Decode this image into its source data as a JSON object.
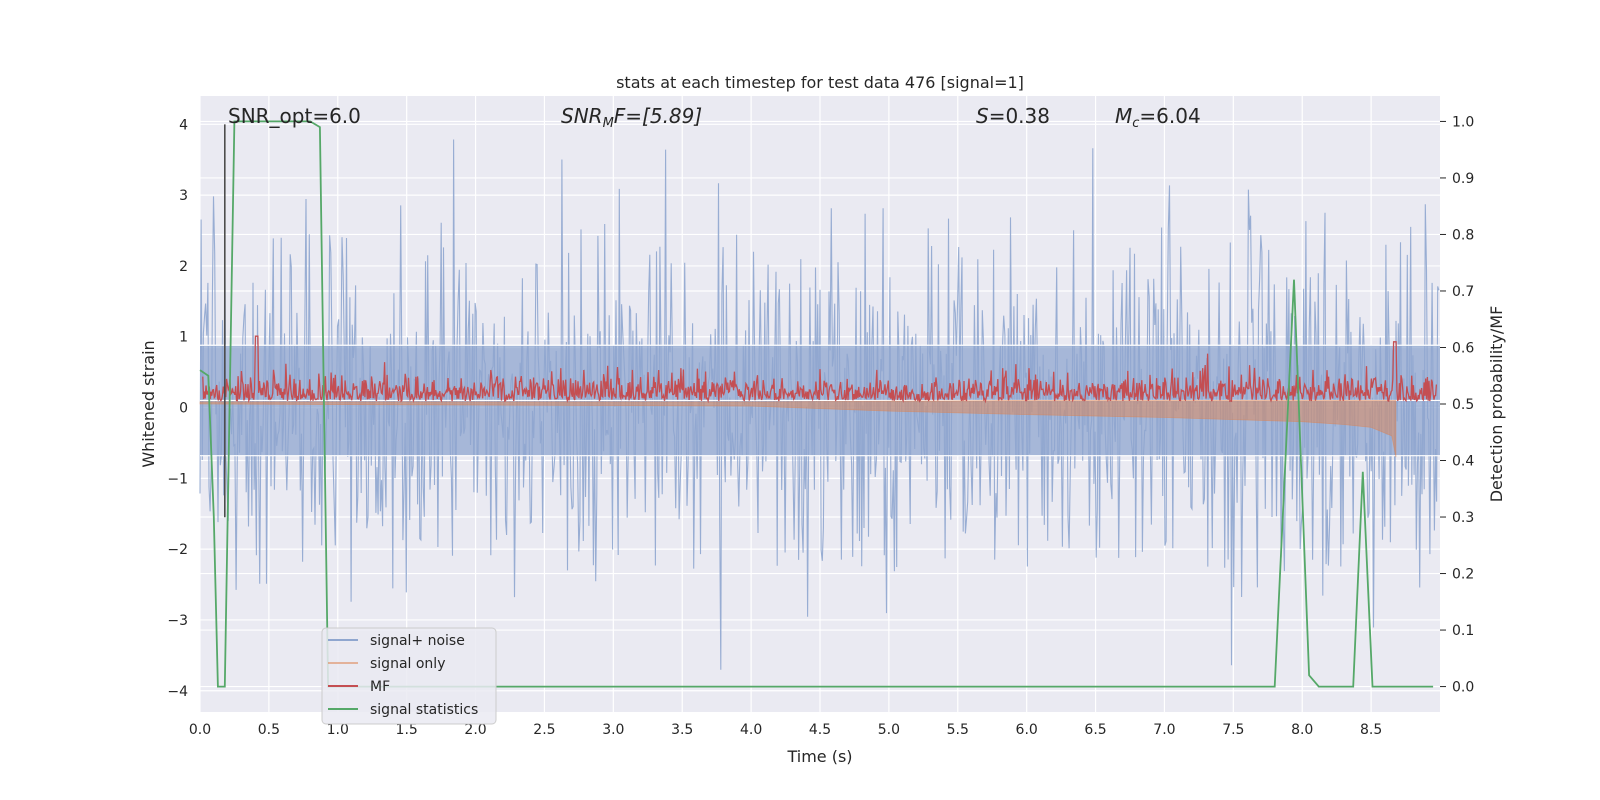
{
  "chart_data": {
    "type": "line",
    "title": "stats at each timestep for test data 476 [signal=1]",
    "xlabel": "Time (s)",
    "ylabel": "Whitened strain",
    "ylabel_right": "Detection probability/MF",
    "xlim": [
      0.0,
      9.0
    ],
    "ylim": [
      -4.3,
      4.4
    ],
    "ylim_right": [
      -0.045,
      1.045
    ],
    "x_ticks": [
      0.0,
      0.5,
      1.0,
      1.5,
      2.0,
      2.5,
      3.0,
      3.5,
      4.0,
      4.5,
      5.0,
      5.5,
      6.0,
      6.5,
      7.0,
      7.5,
      8.0,
      8.5
    ],
    "x_tick_labels": [
      "0.0",
      "0.5",
      "1.0",
      "1.5",
      "2.0",
      "2.5",
      "3.0",
      "3.5",
      "4.0",
      "4.5",
      "5.0",
      "5.5",
      "6.0",
      "6.5",
      "7.0",
      "7.5",
      "8.0",
      "8.5"
    ],
    "y_ticks": [
      -4,
      -3,
      -2,
      -1,
      0,
      1,
      2,
      3,
      4
    ],
    "y_tick_labels": [
      "−4",
      "−3",
      "−2",
      "−1",
      "0",
      "1",
      "2",
      "3",
      "4"
    ],
    "y_right_ticks": [
      0.0,
      0.1,
      0.2,
      0.3,
      0.4,
      0.5,
      0.6,
      0.7,
      0.8,
      0.9,
      1.0
    ],
    "y_right_tick_labels": [
      "0.0",
      "0.1",
      "0.2",
      "0.3",
      "0.4",
      "0.5",
      "0.6",
      "0.7",
      "0.8",
      "0.9",
      "1.0"
    ],
    "grid": true,
    "legend_position": "lower-left",
    "annotations": {
      "snr_opt": "SNR_opt=6.0",
      "snr_mf_main": "SNR",
      "snr_mf_sub": "M",
      "snr_mf_rest": "F=[5.89]",
      "s_main": "S",
      "s_rest": "=0.38",
      "mc_main": "M",
      "mc_sub": "c",
      "mc_rest": "=6.04"
    },
    "marker_line_x": 0.18,
    "series": [
      {
        "name": "signal+ noise",
        "color": "#8fa6cf",
        "axis": "left",
        "approx_amplitude": [
          -3.8,
          4.0
        ]
      },
      {
        "name": "signal only",
        "color": "#dd8452",
        "axis": "left",
        "x": [
          0.0,
          4.0,
          5.0,
          6.0,
          7.0,
          7.5,
          8.0,
          8.3,
          8.5,
          8.65,
          8.68
        ],
        "upper": [
          0.08,
          0.08,
          0.09,
          0.1,
          0.1,
          0.1,
          0.1,
          0.1,
          0.1,
          0.1,
          0.1
        ],
        "lower": [
          0.05,
          0.02,
          -0.05,
          -0.1,
          -0.14,
          -0.17,
          -0.2,
          -0.24,
          -0.28,
          -0.4,
          -0.7
        ]
      },
      {
        "name": "MF",
        "color": "#c44e52",
        "axis": "right",
        "approx_range": [
          0.5,
          0.65
        ],
        "peaks": [
          {
            "x": 0.41,
            "y": 0.62
          },
          {
            "x": 8.67,
            "y": 0.61
          }
        ]
      },
      {
        "name": "signal statistics",
        "color": "#55a868",
        "axis": "right",
        "x": [
          0.0,
          0.06,
          0.1,
          0.13,
          0.18,
          0.25,
          0.8,
          0.87,
          0.93,
          1.0,
          2.0,
          3.0,
          4.0,
          5.0,
          6.0,
          7.0,
          7.8,
          7.94,
          8.05,
          8.12,
          8.37,
          8.44,
          8.51,
          8.95
        ],
        "y": [
          0.56,
          0.55,
          0.3,
          0.0,
          0.0,
          1.0,
          1.0,
          0.99,
          0.0,
          0.0,
          0.0,
          0.0,
          0.0,
          0.0,
          0.0,
          0.0,
          0.0,
          0.72,
          0.02,
          0.0,
          0.0,
          0.38,
          0.0,
          0.0
        ]
      }
    ]
  }
}
